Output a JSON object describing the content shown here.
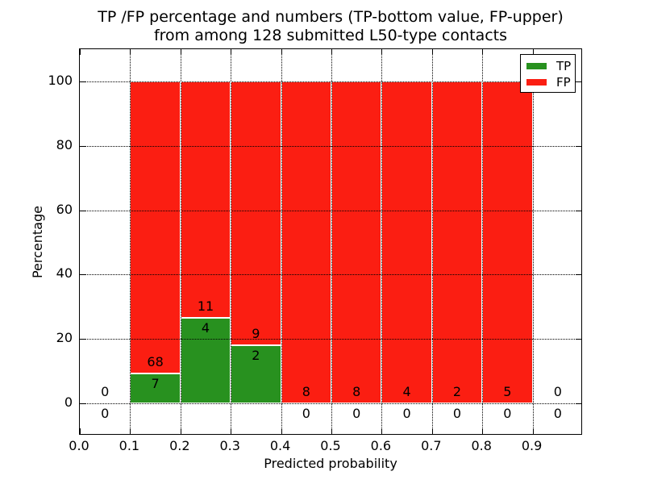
{
  "figure": {
    "background": "#ffffff"
  },
  "chart_data": {
    "type": "bar",
    "stacked": true,
    "title_line1": "TP /FP percentage and numbers (TP-bottom value, FP-upper)",
    "title_line2": "from among 128 submitted L50-type contacts",
    "submitted_contacts": 128,
    "xlabel": "Predicted probability",
    "ylabel": "Percentage",
    "xlim": [
      0.0,
      1.0
    ],
    "ylim": [
      -10,
      110
    ],
    "xticks": [
      "0.0",
      "0.1",
      "0.2",
      "0.3",
      "0.4",
      "0.5",
      "0.6",
      "0.7",
      "0.8",
      "0.9"
    ],
    "yticks": [
      "0",
      "20",
      "40",
      "60",
      "80",
      "100"
    ],
    "grid": {
      "style": "dotted",
      "color": "#000000"
    },
    "colors": {
      "tp": "#28911f",
      "fp": "#fb1e12",
      "bar_edge": "#ffffff"
    },
    "legend": {
      "position": "upper right",
      "entries": [
        {
          "label": "TP",
          "color": "#28911f"
        },
        {
          "label": "FP",
          "color": "#fb1e12"
        }
      ]
    },
    "bins": [
      {
        "x0": 0.0,
        "x1": 0.1,
        "tp": 0,
        "fp": 0,
        "tp_pct": 0,
        "top_pct": 0
      },
      {
        "x0": 0.1,
        "x1": 0.2,
        "tp": 7,
        "fp": 68,
        "tp_pct": 9.33,
        "top_pct": 100
      },
      {
        "x0": 0.2,
        "x1": 0.3,
        "tp": 4,
        "fp": 11,
        "tp_pct": 26.67,
        "top_pct": 100
      },
      {
        "x0": 0.3,
        "x1": 0.4,
        "tp": 2,
        "fp": 9,
        "tp_pct": 18.18,
        "top_pct": 100
      },
      {
        "x0": 0.4,
        "x1": 0.5,
        "tp": 0,
        "fp": 8,
        "tp_pct": 0,
        "top_pct": 100
      },
      {
        "x0": 0.5,
        "x1": 0.6,
        "tp": 0,
        "fp": 8,
        "tp_pct": 0,
        "top_pct": 100
      },
      {
        "x0": 0.6,
        "x1": 0.7,
        "tp": 0,
        "fp": 4,
        "tp_pct": 0,
        "top_pct": 100
      },
      {
        "x0": 0.7,
        "x1": 0.8,
        "tp": 0,
        "fp": 2,
        "tp_pct": 0,
        "top_pct": 100
      },
      {
        "x0": 0.8,
        "x1": 0.9,
        "tp": 0,
        "fp": 5,
        "tp_pct": 0,
        "top_pct": 100
      },
      {
        "x0": 0.9,
        "x1": 1.0,
        "tp": 0,
        "fp": 0,
        "tp_pct": 0,
        "top_pct": 0
      }
    ]
  }
}
